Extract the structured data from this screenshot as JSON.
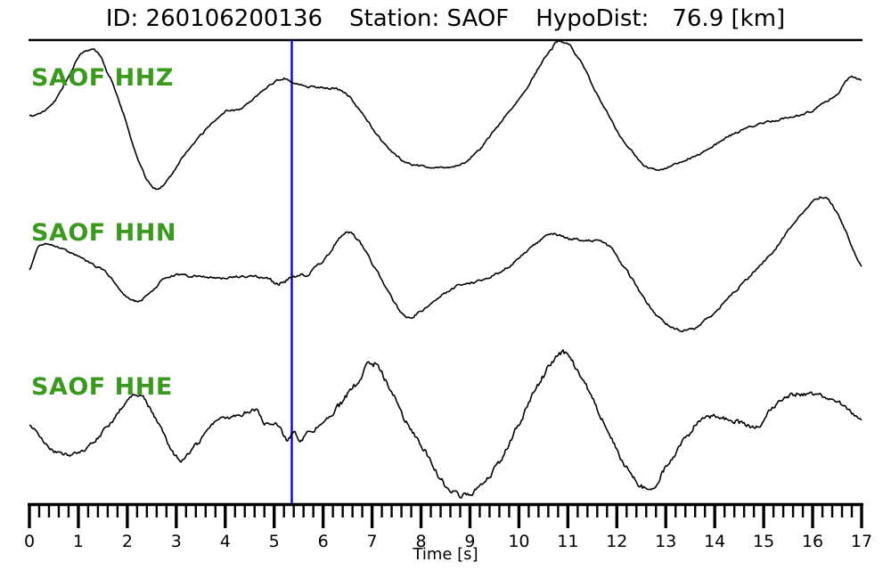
{
  "header": {
    "id_text": "ID: 260106200136",
    "station_text": "Station: SAOF",
    "hypodist_label": "HypoDist:",
    "hypodist_value": "76.9 [km]"
  },
  "colors": {
    "trace": "#000000",
    "label_green": "#3a9a1e",
    "pick_blue": "#0000ee",
    "axis": "#000000"
  },
  "chart_data": {
    "type": "line",
    "title": "ID: 260106200136  Station: SAOF  HypoDist:  76.9 [km]",
    "xlabel": "Time [s]",
    "x_range": [
      0,
      17
    ],
    "x_major_ticks": [
      0,
      1,
      2,
      3,
      4,
      5,
      6,
      7,
      8,
      9,
      10,
      11,
      12,
      13,
      14,
      15,
      16,
      17
    ],
    "x_minor_step": 0.2,
    "grid": false,
    "legend": false,
    "pick_line_t": 5.36,
    "note_units": "y values are vertical pixel positions in the rendered figure (no amplitude axis shown)",
    "traces": [
      {
        "label": "SAOF HHZ",
        "seed": 7,
        "noise_profile": [
          [
            0,
            1.2
          ],
          [
            17,
            1.2
          ]
        ],
        "t": [
          0,
          0.49,
          1.13,
          1.58,
          2.49,
          3.22,
          3.95,
          4.31,
          4.68,
          5.17,
          5.35,
          5.68,
          6.04,
          6.41,
          6.68,
          7.23,
          7.68,
          8.13,
          8.68,
          9.05,
          9.59,
          10.14,
          10.68,
          10.87,
          11.14,
          11.78,
          12.32,
          12.69,
          13.23,
          13.78,
          14.33,
          14.87,
          15.42,
          15.96,
          16.51,
          16.78,
          17
        ],
        "y": [
          131,
          115,
          58,
          80,
          208,
          170,
          128,
          122,
          105,
          88,
          92,
          97,
          98,
          103,
          120,
          160,
          182,
          187,
          187,
          175,
          140,
          100,
          55,
          47,
          60,
          125,
          170,
          190,
          183,
          170,
          152,
          140,
          133,
          125,
          105,
          87,
          90
        ]
      },
      {
        "label": "SAOF HHN",
        "seed": 13,
        "noise_profile": [
          [
            0,
            1.2
          ],
          [
            4.6,
            1.3
          ],
          [
            5.0,
            2.4
          ],
          [
            5.5,
            2.4
          ],
          [
            6.0,
            1.4
          ],
          [
            17,
            1.4
          ]
        ],
        "t": [
          0,
          0.22,
          0.76,
          1.22,
          1.58,
          2.08,
          2.4,
          2.8,
          3.4,
          3.95,
          4.5,
          4.86,
          5.13,
          5.35,
          5.68,
          6.04,
          6.44,
          6.68,
          7.04,
          7.64,
          7.95,
          8.68,
          9.23,
          9.77,
          10.32,
          10.68,
          11.05,
          11.41,
          11.78,
          12.14,
          12.69,
          13.11,
          13.51,
          13.78,
          14.51,
          15.23,
          15.78,
          16.23,
          16.6,
          17
        ],
        "y": [
          303,
          275,
          282,
          295,
          307,
          337,
          332,
          311,
          310,
          312,
          310,
          313,
          318,
          313,
          307,
          290,
          262,
          268,
          300,
          353,
          350,
          323,
          315,
          300,
          275,
          263,
          268,
          270,
          274,
          300,
          345,
          367,
          370,
          360,
          322,
          280,
          240,
          221,
          250,
          298
        ]
      },
      {
        "label": "SAOF HHE",
        "seed": 42,
        "noise_profile": [
          [
            0,
            2.0
          ],
          [
            4.6,
            2.6
          ],
          [
            5.1,
            3.8
          ],
          [
            8.2,
            3.8
          ],
          [
            9.2,
            2.8
          ],
          [
            10.4,
            3.8
          ],
          [
            11.5,
            3.0
          ],
          [
            17,
            2.6
          ]
        ],
        "t": [
          0,
          0.49,
          1.04,
          1.58,
          2.19,
          2.58,
          3.04,
          3.4,
          3.82,
          4.13,
          4.64,
          4.86,
          5.04,
          5.26,
          5.35,
          5.59,
          5.86,
          6.13,
          6.41,
          6.68,
          7.01,
          7.32,
          7.68,
          8.13,
          8.5,
          8.83,
          9.23,
          9.59,
          9.96,
          10.41,
          10.9,
          11.23,
          11.69,
          12.14,
          12.63,
          13.05,
          13.51,
          13.78,
          14.23,
          14.87,
          15.14,
          15.42,
          15.96,
          16.42,
          16.69,
          17
        ],
        "y": [
          477,
          507,
          508,
          480,
          442,
          470,
          515,
          500,
          472,
          470,
          460,
          478,
          472,
          492,
          488,
          492,
          480,
          470,
          450,
          430,
          408,
          430,
          470,
          510,
          545,
          557,
          545,
          520,
          480,
          430,
          396,
          420,
          470,
          520,
          549,
          520,
          485,
          468,
          470,
          480,
          460,
          445,
          442,
          448,
          460,
          472
        ]
      }
    ]
  }
}
